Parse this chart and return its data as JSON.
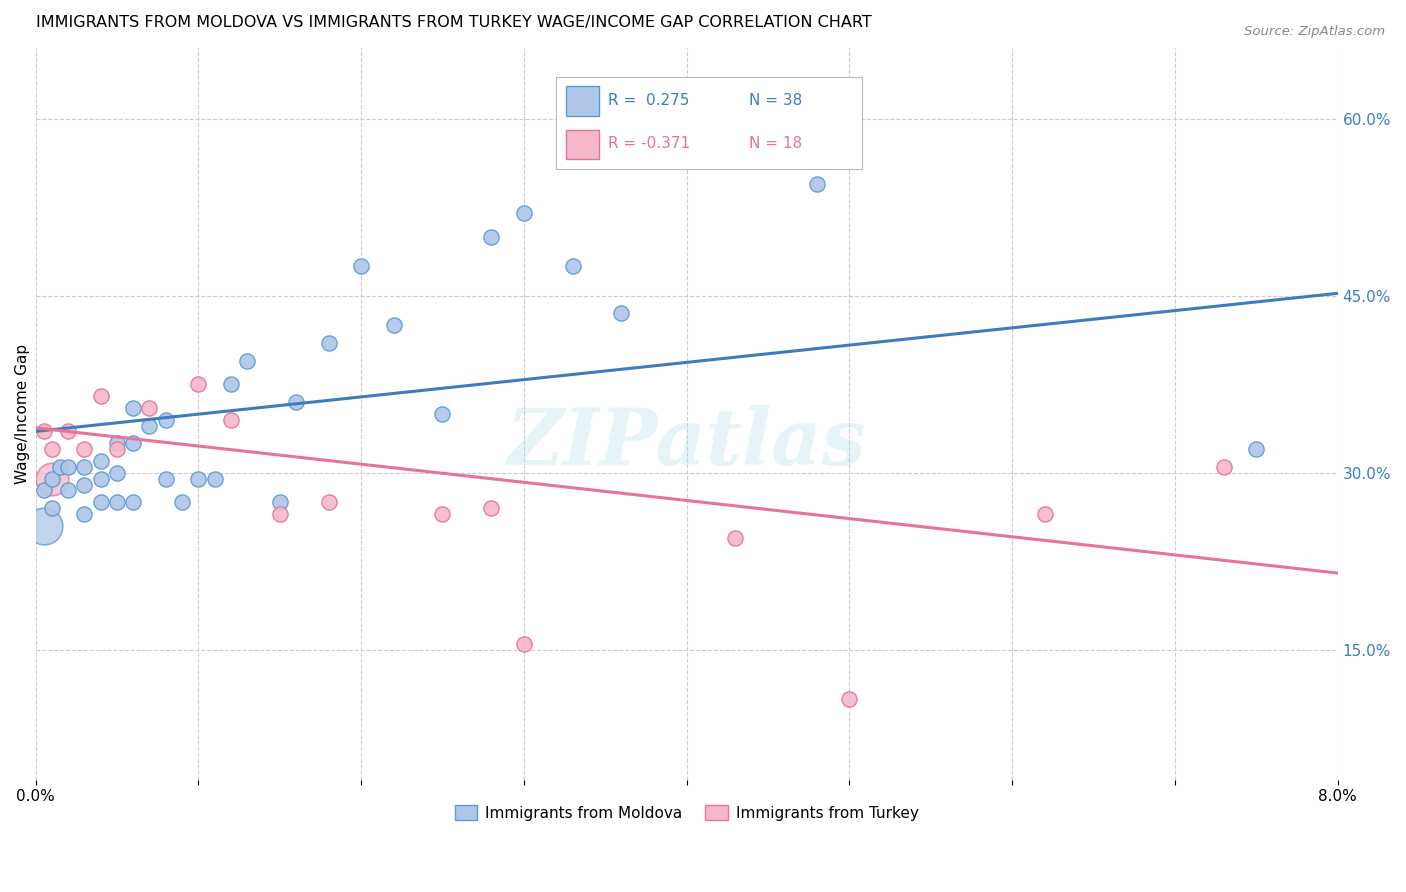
{
  "title": "IMMIGRANTS FROM MOLDOVA VS IMMIGRANTS FROM TURKEY WAGE/INCOME GAP CORRELATION CHART",
  "source": "Source: ZipAtlas.com",
  "ylabel": "Wage/Income Gap",
  "x_min": 0.0,
  "x_max": 0.08,
  "y_min": 0.04,
  "y_max": 0.66,
  "x_ticks": [
    0.0,
    0.01,
    0.02,
    0.03,
    0.04,
    0.05,
    0.06,
    0.07,
    0.08
  ],
  "x_tick_labels": [
    "0.0%",
    "",
    "",
    "",
    "",
    "",
    "",
    "",
    "8.0%"
  ],
  "y_ticks_right": [
    0.15,
    0.3,
    0.45,
    0.6
  ],
  "y_tick_labels_right": [
    "15.0%",
    "30.0%",
    "45.0%",
    "60.0%"
  ],
  "moldova_color": "#aec6e8",
  "moldova_edge_color": "#5b9bd5",
  "turkey_color": "#f4b8c8",
  "turkey_edge_color": "#e8729a",
  "trend_blue": "#3e7dbd",
  "trend_pink": "#e8729a",
  "moldova_x": [
    0.0005,
    0.001,
    0.001,
    0.0015,
    0.002,
    0.002,
    0.003,
    0.003,
    0.003,
    0.004,
    0.004,
    0.004,
    0.005,
    0.005,
    0.005,
    0.006,
    0.006,
    0.006,
    0.007,
    0.008,
    0.008,
    0.009,
    0.01,
    0.011,
    0.012,
    0.013,
    0.015,
    0.016,
    0.018,
    0.02,
    0.022,
    0.025,
    0.028,
    0.03,
    0.033,
    0.036,
    0.048,
    0.075
  ],
  "moldova_y": [
    0.285,
    0.295,
    0.27,
    0.305,
    0.305,
    0.285,
    0.305,
    0.29,
    0.265,
    0.31,
    0.295,
    0.275,
    0.325,
    0.3,
    0.275,
    0.355,
    0.325,
    0.275,
    0.34,
    0.345,
    0.295,
    0.275,
    0.295,
    0.295,
    0.375,
    0.395,
    0.275,
    0.36,
    0.41,
    0.475,
    0.425,
    0.35,
    0.5,
    0.52,
    0.475,
    0.435,
    0.545,
    0.32
  ],
  "moldova_sizes": [
    120,
    100,
    100,
    100,
    100,
    100,
    100,
    100,
    100,
    100,
    100,
    100,
    100,
    100,
    100,
    100,
    100,
    100,
    100,
    100,
    100,
    100,
    100,
    100,
    100,
    100,
    100,
    100,
    100,
    100,
    100,
    100,
    100,
    100,
    100,
    100,
    100,
    120
  ],
  "turkey_x": [
    0.0005,
    0.001,
    0.002,
    0.003,
    0.004,
    0.005,
    0.007,
    0.01,
    0.012,
    0.015,
    0.018,
    0.025,
    0.028,
    0.03,
    0.043,
    0.05,
    0.062,
    0.073
  ],
  "turkey_y": [
    0.335,
    0.32,
    0.335,
    0.32,
    0.365,
    0.32,
    0.355,
    0.375,
    0.345,
    0.265,
    0.275,
    0.265,
    0.27,
    0.155,
    0.245,
    0.108,
    0.265,
    0.305
  ],
  "turkey_sizes": [
    100,
    100,
    100,
    100,
    100,
    100,
    100,
    100,
    100,
    100,
    100,
    100,
    100,
    100,
    100,
    100,
    100,
    100
  ],
  "large_moldova_x": [
    0.0005
  ],
  "large_moldova_y": [
    0.255
  ],
  "large_moldova_s": [
    700
  ],
  "large_turkey_x": [
    0.001
  ],
  "large_turkey_y": [
    0.295
  ],
  "large_turkey_s": [
    550
  ],
  "watermark": "ZIPatlas",
  "bottom_legend_label1": "Immigrants from Moldova",
  "bottom_legend_label2": "Immigrants from Turkey"
}
